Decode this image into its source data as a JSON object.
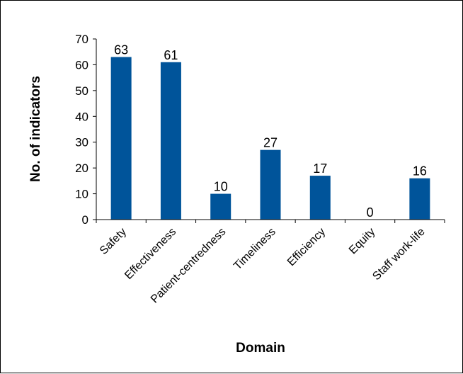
{
  "chart_data": {
    "type": "bar",
    "categories": [
      "Safety",
      "Effectiveness",
      "Patient-centredness",
      "Timeliness",
      "Efficiency",
      "Equity",
      "Staff work-life"
    ],
    "values": [
      63,
      61,
      10,
      27,
      17,
      0,
      16
    ],
    "xlabel": "Domain",
    "ylabel": "No. of indicators",
    "ylim": [
      0,
      70
    ],
    "yticks": [
      0,
      10,
      20,
      30,
      40,
      50,
      60,
      70
    ],
    "grid": false,
    "legend": "none",
    "bar_color": "#00549A",
    "data_labels": true
  }
}
